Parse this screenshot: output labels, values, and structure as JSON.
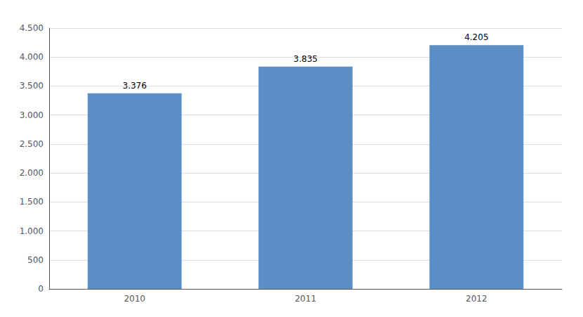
{
  "chart_data": {
    "type": "bar",
    "categories": [
      "2010",
      "2011",
      "2012"
    ],
    "values": [
      3376,
      3835,
      4205
    ],
    "value_labels": [
      "3.376",
      "3.835",
      "4.205"
    ],
    "color": "#5b8ec4",
    "ylim": [
      0,
      4500
    ],
    "yticks": [
      0,
      500,
      {
        "value": 1000,
        "label": "1.000"
      },
      {
        "value": 1500,
        "label": "1.500"
      },
      {
        "value": 2000,
        "label": "2.000"
      },
      {
        "value": 2500,
        "label": "2.500"
      },
      {
        "value": 3000,
        "label": "3.000"
      },
      {
        "value": 3500,
        "label": "3.500"
      },
      {
        "value": 4000,
        "label": "4.000"
      },
      {
        "value": 4500,
        "label": "4.500"
      }
    ],
    "grid": true
  }
}
